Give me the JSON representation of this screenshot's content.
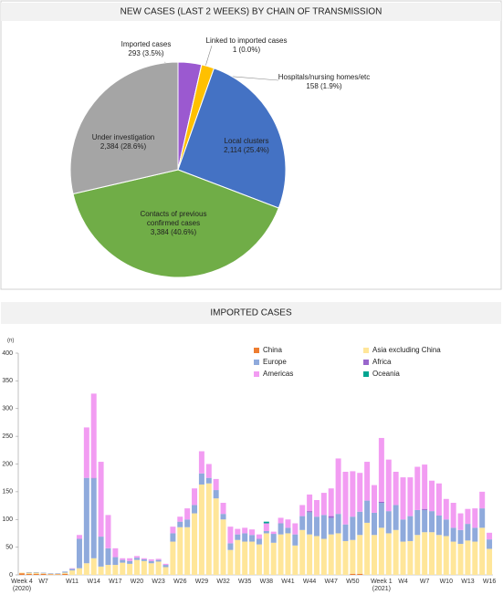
{
  "chart_data": [
    {
      "type": "pie",
      "title": "NEW CASES (LAST 2 WEEKS) BY CHAIN OF TRANSMISSION",
      "categories": [
        "Imported cases",
        "Linked to imported cases",
        "Hospitals/nursing homes/etc",
        "Local clusters",
        "Contacts of previous confirmed cases",
        "Under investigation"
      ],
      "values": [
        293,
        1,
        158,
        2114,
        3384,
        2384
      ],
      "value_labels": [
        "293 (3.5%)",
        "1 (0.0%)",
        "158 (1.9%)",
        "2,114 (25.4%)",
        "3,384 (40.6%)",
        "2,384 (28.6%)"
      ],
      "colors": [
        "#9b59d0",
        "#f4b183",
        "#ffc000",
        "#4472c4",
        "#70ad47",
        "#a5a5a5"
      ]
    },
    {
      "type": "bar",
      "stacked": true,
      "title": "IMPORTED CASES",
      "y_label": "(n)",
      "categories": [
        "Week 4\n(2020)",
        null,
        null,
        "W7",
        null,
        null,
        null,
        "W11",
        null,
        null,
        "W14",
        null,
        null,
        "W17",
        null,
        null,
        "W20",
        null,
        null,
        "W23",
        null,
        null,
        "W26",
        null,
        null,
        "W29",
        null,
        null,
        "W32",
        null,
        null,
        "W35",
        null,
        null,
        "W38",
        null,
        null,
        "W41",
        null,
        null,
        "W44",
        null,
        null,
        "W47",
        null,
        null,
        "W50",
        null,
        null,
        null,
        "Week 1\n(2021)",
        null,
        null,
        "W4",
        null,
        null,
        "W7",
        null,
        null,
        "W10",
        null,
        null,
        "W13",
        null,
        null,
        "W16"
      ],
      "series": [
        {
          "name": "China",
          "color": "#ed7d31",
          "values": [
            3,
            2,
            2,
            2,
            1,
            1,
            2,
            0,
            0,
            0,
            0,
            0,
            0,
            0,
            0,
            0,
            0,
            0,
            0,
            0,
            0,
            0,
            0,
            0,
            0,
            0,
            0,
            0,
            0,
            0,
            0,
            0,
            0,
            0,
            0,
            0,
            0,
            0,
            0,
            0,
            0,
            0,
            0,
            0,
            0,
            0,
            2,
            2,
            0,
            0,
            0,
            0,
            0,
            0,
            0,
            0,
            0,
            0,
            0,
            0,
            0,
            0,
            0,
            0,
            0,
            0
          ]
        },
        {
          "name": "Asia excluding China",
          "color": "#ffe699",
          "values": [
            1,
            2,
            2,
            1,
            1,
            1,
            2,
            8,
            12,
            21,
            30,
            15,
            18,
            18,
            22,
            20,
            27,
            25,
            21,
            24,
            14,
            60,
            86,
            86,
            111,
            163,
            165,
            138,
            100,
            45,
            63,
            60,
            60,
            55,
            75,
            58,
            73,
            75,
            53,
            81,
            73,
            70,
            65,
            73,
            75,
            61,
            61,
            70,
            94,
            72,
            85,
            75,
            81,
            60,
            61,
            72,
            77,
            77,
            72,
            70,
            60,
            56,
            62,
            60,
            85,
            47
          ]
        },
        {
          "name": "Europe",
          "color": "#8faadc",
          "values": [
            0,
            1,
            1,
            1,
            1,
            1,
            2,
            3,
            53,
            154,
            144,
            54,
            30,
            14,
            5,
            5,
            4,
            3,
            4,
            3,
            4,
            15,
            10,
            14,
            15,
            20,
            10,
            15,
            10,
            12,
            10,
            15,
            12,
            10,
            4,
            16,
            20,
            10,
            20,
            25,
            40,
            35,
            43,
            30,
            35,
            30,
            42,
            42,
            40,
            40,
            45,
            40,
            45,
            40,
            45,
            45,
            40,
            38,
            35,
            30,
            25,
            25,
            30,
            25,
            35,
            17
          ]
        },
        {
          "name": "Africa",
          "color": "#9966cc",
          "values": [
            0,
            0,
            0,
            0,
            0,
            0,
            0,
            0,
            0,
            0,
            1,
            0,
            0,
            0,
            0,
            0,
            0,
            0,
            0,
            0,
            0,
            0,
            0,
            0,
            0,
            0,
            0,
            0,
            0,
            0,
            0,
            0,
            0,
            0,
            0,
            0,
            0,
            0,
            0,
            0,
            2,
            0,
            0,
            3,
            0,
            0,
            0,
            0,
            0,
            0,
            2,
            0,
            0,
            0,
            0,
            0,
            2,
            0,
            0,
            0,
            0,
            0,
            0,
            0,
            0,
            0
          ]
        },
        {
          "name": "Americas",
          "color": "#f29cf2",
          "values": [
            0,
            0,
            0,
            0,
            0,
            0,
            0,
            1,
            7,
            91,
            152,
            135,
            60,
            16,
            3,
            5,
            3,
            2,
            3,
            2,
            2,
            12,
            9,
            20,
            30,
            40,
            25,
            20,
            20,
            30,
            10,
            10,
            10,
            8,
            14,
            4,
            10,
            15,
            20,
            20,
            30,
            30,
            40,
            50,
            100,
            95,
            82,
            70,
            70,
            50,
            115,
            93,
            60,
            76,
            70,
            78,
            80,
            55,
            58,
            37,
            45,
            30,
            27,
            35,
            30,
            12
          ]
        },
        {
          "name": "Oceania",
          "color": "#00a591",
          "values": [
            0,
            0,
            0,
            0,
            0,
            0,
            0,
            0,
            0,
            0,
            0,
            0,
            0,
            0,
            0,
            0,
            0,
            0,
            0,
            0,
            0,
            0,
            0,
            0,
            0,
            0,
            0,
            0,
            0,
            0,
            0,
            0,
            0,
            0,
            3,
            0,
            0,
            0,
            0,
            0,
            0,
            0,
            0,
            0,
            0,
            0,
            0,
            0,
            0,
            0,
            0,
            0,
            0,
            0,
            0,
            0,
            0,
            0,
            0,
            0,
            0,
            0,
            0,
            0,
            0,
            0
          ]
        }
      ],
      "ylim": [
        0,
        400
      ],
      "yticks": [
        0,
        50,
        100,
        150,
        200,
        250,
        300,
        350,
        400
      ],
      "grid": false,
      "legend": "top"
    }
  ]
}
